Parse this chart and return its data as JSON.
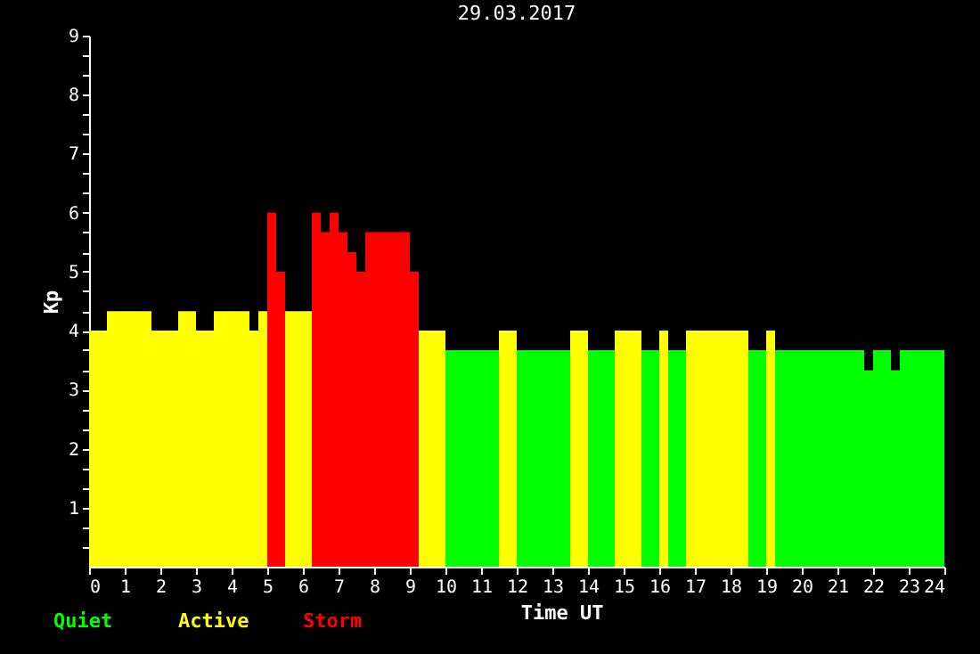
{
  "chart_data": {
    "type": "histogram",
    "title": "29.03.2017",
    "xlabel": "Time UT",
    "ylabel": "Kp",
    "bins": [
      0,
      0.5,
      1.75,
      2.5,
      3,
      3.5,
      4.5,
      4.75,
      5,
      5.25,
      5.5,
      6.25,
      6.5,
      6.75,
      7,
      7.25,
      7.5,
      7.75,
      9,
      9.25,
      10,
      11.5,
      12,
      13.5,
      14,
      14.75,
      15.5,
      16,
      16.25,
      16.75,
      18.5,
      19,
      19.25,
      21.75,
      22,
      22.5,
      22.75,
      24
    ],
    "series": [
      {
        "name": "Quiet",
        "color": "#00ff00",
        "values": [
          null,
          null,
          null,
          null,
          null,
          null,
          null,
          null,
          null,
          null,
          null,
          null,
          null,
          null,
          null,
          null,
          null,
          null,
          null,
          null,
          3.67,
          null,
          3.67,
          null,
          3.67,
          null,
          3.67,
          null,
          3.67,
          null,
          3.67,
          null,
          3.67,
          3.33,
          3.67,
          3.33,
          3.67
        ]
      },
      {
        "name": "Active",
        "color": "#ffff00",
        "values": [
          4,
          4.33,
          4,
          4.33,
          4,
          4.33,
          4,
          4.33,
          null,
          null,
          4.33,
          null,
          null,
          null,
          null,
          null,
          null,
          null,
          null,
          4,
          null,
          4,
          null,
          4,
          null,
          4,
          null,
          4,
          null,
          4,
          null,
          4,
          null,
          null,
          null,
          null,
          null
        ]
      },
      {
        "name": "Storm",
        "color": "#ff0000",
        "values": [
          null,
          null,
          null,
          null,
          null,
          null,
          null,
          null,
          6,
          5,
          null,
          6,
          5.67,
          6,
          5.67,
          5.33,
          5,
          5.67,
          5,
          null,
          null,
          null,
          null,
          null,
          null,
          null,
          null,
          null,
          null,
          null,
          null,
          null,
          null,
          null,
          null,
          null,
          null
        ]
      }
    ],
    "xlim": [
      0,
      24
    ],
    "ylim": [
      0,
      9
    ],
    "xticks": [
      0,
      1,
      2,
      3,
      4,
      5,
      6,
      7,
      8,
      9,
      10,
      11,
      12,
      13,
      14,
      15,
      16,
      17,
      18,
      19,
      20,
      21,
      22,
      23,
      24
    ],
    "yticks": [
      {
        "value": 0.33,
        "label": null
      },
      {
        "value": 0.67,
        "label": null
      },
      1,
      {
        "value": 1.33,
        "label": null
      },
      {
        "value": 1.67,
        "label": null
      },
      2,
      {
        "value": 2.33,
        "label": null
      },
      {
        "value": 2.67,
        "label": null
      },
      3,
      {
        "value": 3.33,
        "label": null
      },
      {
        "value": 3.67,
        "label": null
      },
      4,
      {
        "value": 4.33,
        "label": null
      },
      {
        "value": 4.67,
        "label": null
      },
      5,
      {
        "value": 5.33,
        "label": null
      },
      {
        "value": 5.67,
        "label": null
      },
      6,
      {
        "value": 6.33,
        "label": null
      },
      {
        "value": 6.67,
        "label": null
      },
      7,
      {
        "value": 7.33,
        "label": null
      },
      {
        "value": 7.67,
        "label": null
      },
      8,
      {
        "value": 8.33,
        "label": null
      },
      {
        "value": 8.67,
        "label": null
      },
      9
    ],
    "grid": false,
    "legend": "bottom left"
  }
}
